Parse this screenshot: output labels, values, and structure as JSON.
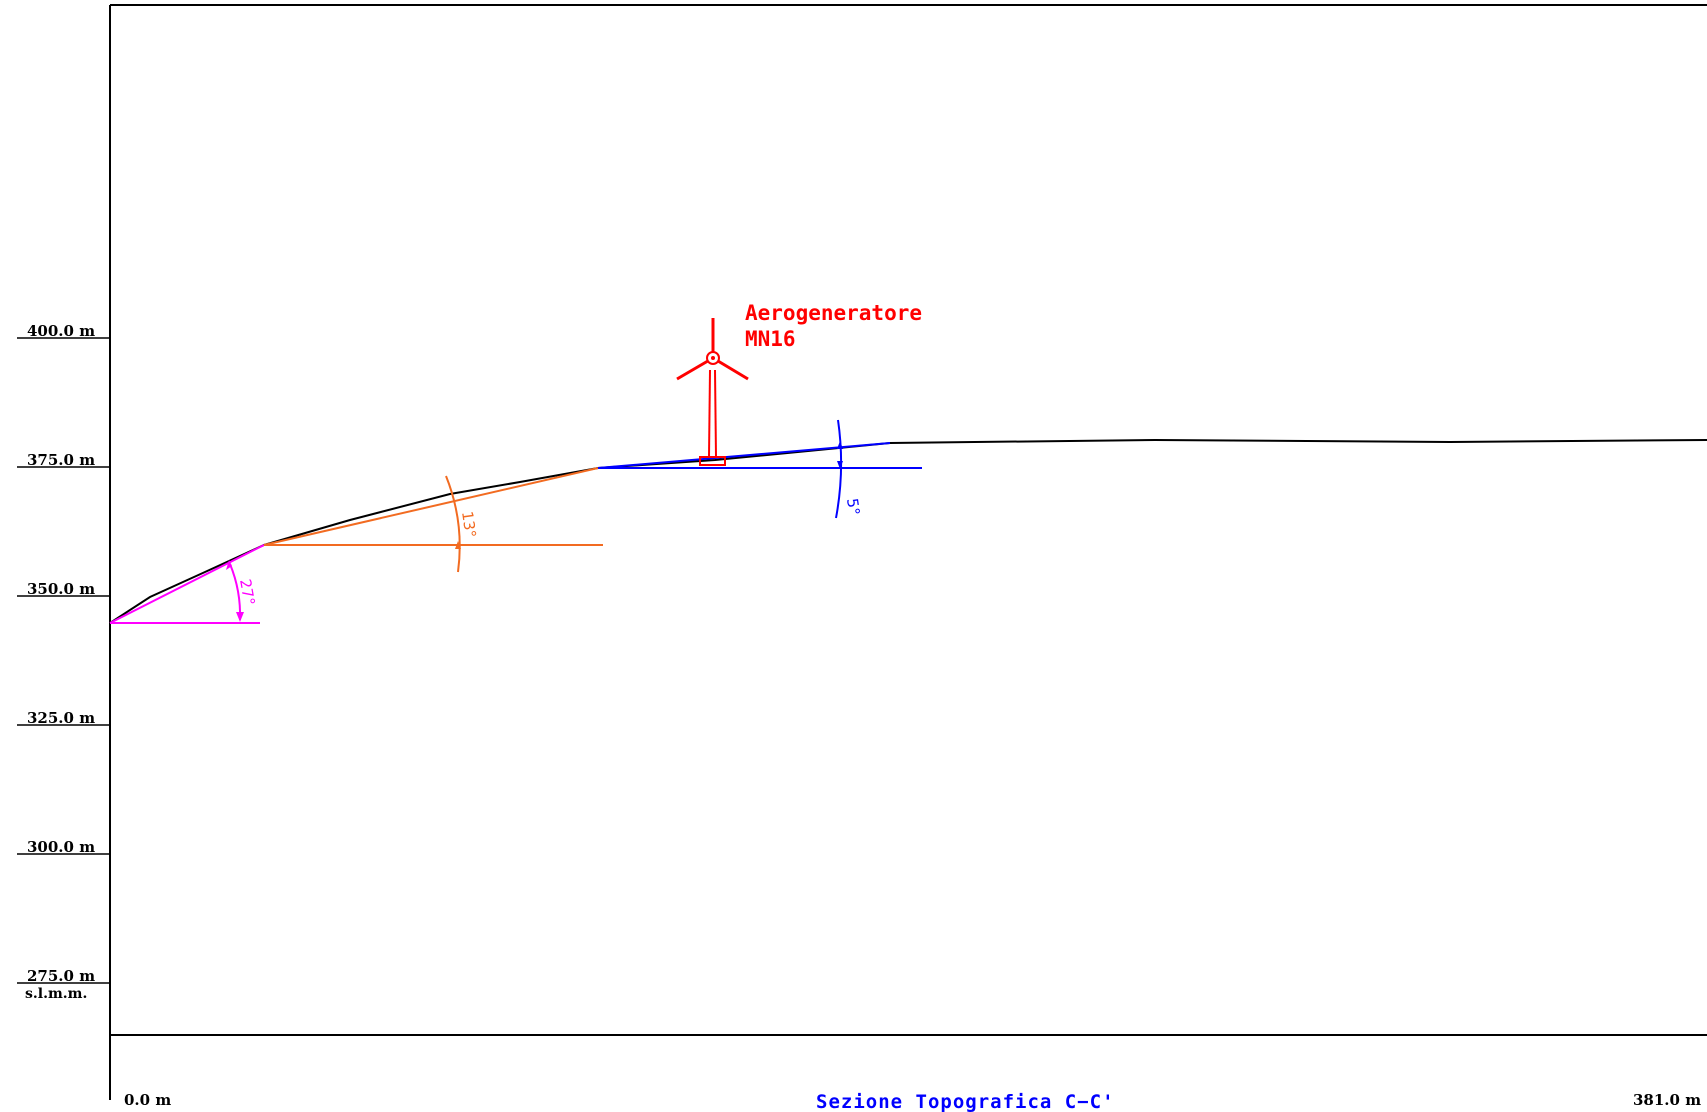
{
  "elevation_axis": {
    "labels": [
      "400.0 m",
      "375.0 m",
      "350.0 m",
      "325.0 m",
      "300.0 m",
      "275.0 m"
    ],
    "unit": "s.l.m.m."
  },
  "distance_axis": {
    "start": "0.0 m",
    "end": "381.0 m"
  },
  "title": "Sezione Topografica C−C'",
  "turbine": {
    "label_line1": "Aerogeneratore",
    "label_line2": "MN16"
  },
  "slope_angles": [
    {
      "label": "27°",
      "color": "#ff00ff"
    },
    {
      "label": "13°",
      "color": "#f26b21"
    },
    {
      "label": "5°",
      "color": "#0000ff"
    }
  ],
  "colors": {
    "frame": "#000000",
    "profile": "#000000",
    "turbine": "#ff0000",
    "title": "#0000ff"
  }
}
